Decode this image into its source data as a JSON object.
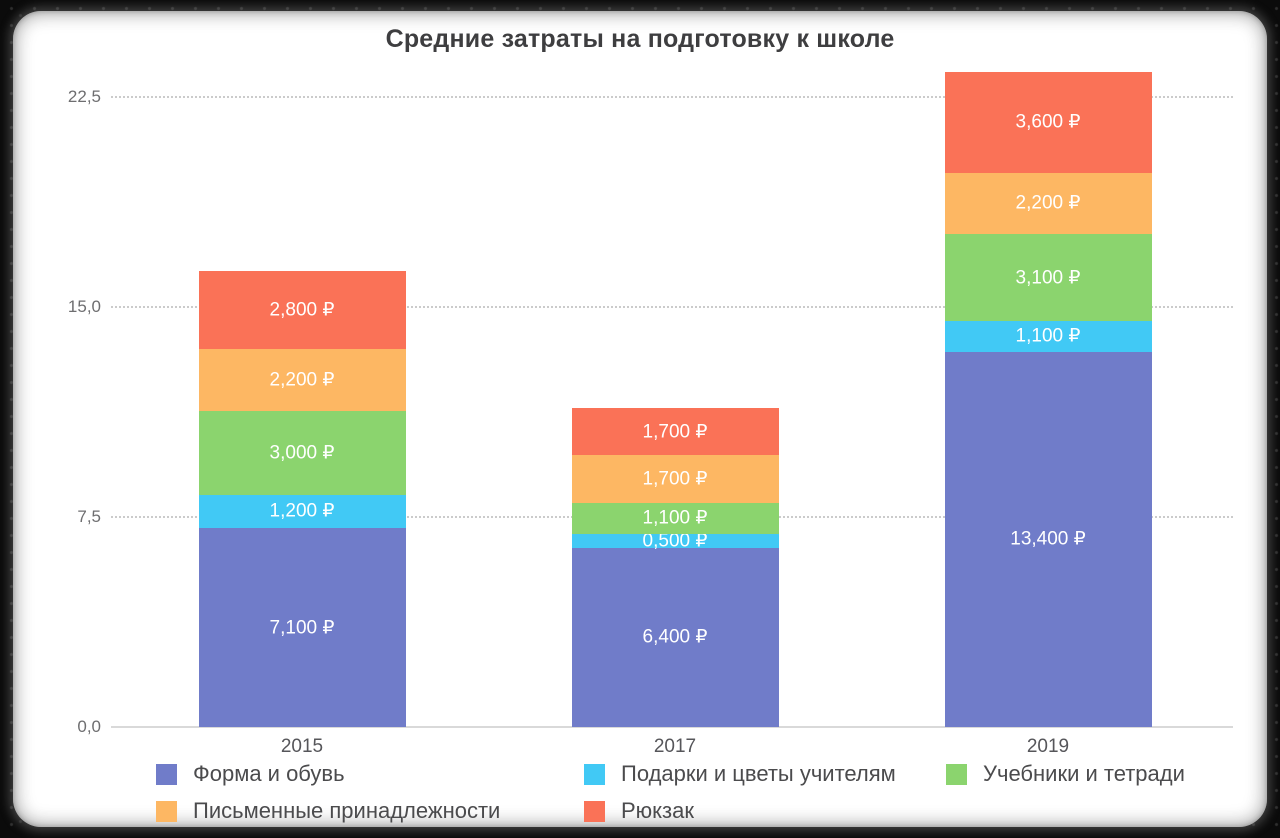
{
  "frame": {
    "border_color": "#0b0b0b",
    "card_color": "#ffffff"
  },
  "chart_data": {
    "type": "bar",
    "variant": "stacked",
    "title": "Средние затраты на подготовку к школе",
    "currency": "₽",
    "categories": [
      "2015",
      "2017",
      "2019"
    ],
    "series": [
      {
        "name": "Форма и обувь",
        "color": "#707cc9",
        "values": [
          7.1,
          6.4,
          13.4
        ],
        "labels": [
          "7,100 ₽",
          "6,400 ₽",
          "13,400 ₽"
        ]
      },
      {
        "name": "Подарки и цветы учителям",
        "color": "#41c9f5",
        "values": [
          1.2,
          0.5,
          1.1
        ],
        "labels": [
          "1,200 ₽",
          "0,500 ₽",
          "1,100 ₽"
        ]
      },
      {
        "name": "Учебники и тетради",
        "color": "#8bd46e",
        "values": [
          3.0,
          1.1,
          3.1
        ],
        "labels": [
          "3,000 ₽",
          "1,100 ₽",
          "3,100 ₽"
        ]
      },
      {
        "name": "Письменные принадлежности",
        "color": "#fdb763",
        "values": [
          2.2,
          1.7,
          2.2
        ],
        "labels": [
          "2,200 ₽",
          "1,700 ₽",
          "2,200 ₽"
        ]
      },
      {
        "name": "Рюкзак",
        "color": "#fa7257",
        "values": [
          2.8,
          1.7,
          3.6
        ],
        "labels": [
          "2,800 ₽",
          "1,700 ₽",
          "3,600 ₽"
        ]
      }
    ],
    "totals": [
      16.3,
      11.4,
      23.4
    ],
    "y_axis": {
      "unit": "thousand rubles",
      "ticks": [
        {
          "label": "0,0",
          "value": 0
        },
        {
          "label": "7,5",
          "value": 7.5
        },
        {
          "label": "15,0",
          "value": 15
        },
        {
          "label": "22,5",
          "value": 22.5
        }
      ],
      "ylim": [
        0,
        25
      ]
    },
    "grid": "horizontal dotted",
    "legend_position": "bottom",
    "label_text_color": "#ffffff",
    "gridline_color": "#cbcbcb",
    "axis_line_color": "#d9d9d9"
  }
}
